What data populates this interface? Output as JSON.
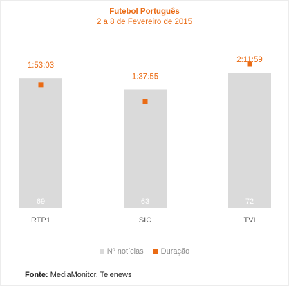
{
  "colors": {
    "bar": "#dadada",
    "marker": "#ea6b14",
    "title": "#ea6b14",
    "bar_label": "#ffffff",
    "category": "#555555"
  },
  "chart_data": {
    "type": "bar",
    "title": "Futebol Português",
    "subtitle": "2 a 8 de Fevereiro de 2015",
    "categories": [
      "RTP1",
      "SIC",
      "TVI"
    ],
    "series": [
      {
        "name": "Nº notícias",
        "type": "bar",
        "values": [
          69,
          63,
          72
        ],
        "labels": [
          "69",
          "63",
          "72"
        ]
      },
      {
        "name": "Duração",
        "type": "marker",
        "values_seconds": [
          6783,
          5875,
          7919
        ],
        "labels": [
          "1:53:03",
          "1:37:55",
          "2:11:59"
        ]
      }
    ],
    "legend": "bottom",
    "grid": false
  },
  "source": {
    "label": "Fonte:",
    "text": "MediaMonitor, Telenews"
  }
}
